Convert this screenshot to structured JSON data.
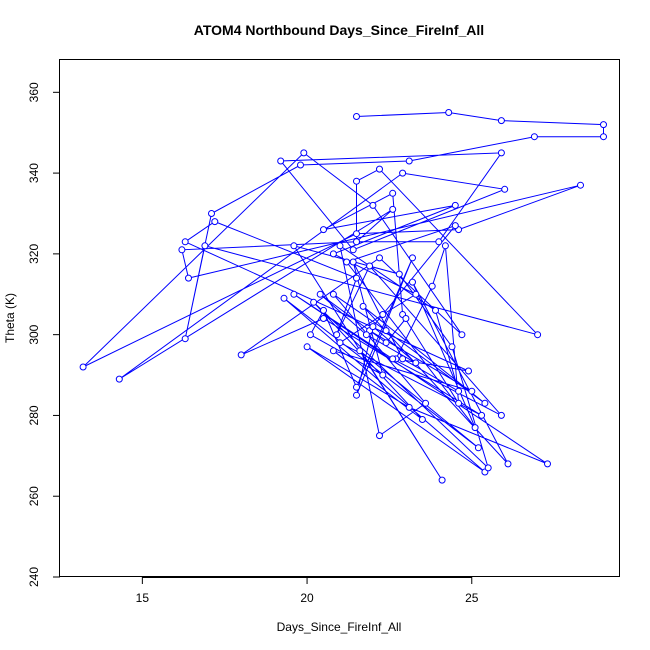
{
  "chart_data": {
    "type": "line",
    "title": "ATOM4 Northbound Days_Since_FireInf_All",
    "xlabel": "Days_Since_FireInf_All",
    "ylabel": "Theta (K)",
    "xlim": [
      12.5,
      29.5
    ],
    "ylim": [
      240,
      368
    ],
    "xticks": [
      15,
      20,
      25
    ],
    "yticks": [
      240,
      260,
      280,
      300,
      320,
      340,
      360
    ],
    "grid": false,
    "line_color": "#0000ff",
    "marker": "open-circle",
    "series": [
      {
        "x": [
          21.5,
          24.3,
          25.9,
          29.0,
          29.0,
          26.9,
          23.1,
          19.8,
          17.1,
          16.3,
          16.9,
          27.0,
          22.2,
          21.5,
          21.5,
          22.6,
          14.3,
          22.9,
          26.0,
          21.4,
          19.2,
          25.9,
          24.0,
          21.5,
          16.2,
          16.4,
          28.3,
          24.6,
          21.5,
          13.2,
          19.9,
          22.0,
          24.7,
          22.2,
          18.0,
          20.5,
          25.3,
          21.0,
          22.3,
          23.3,
          20.8,
          24.5,
          20.5,
          22.6,
          22.9,
          24.6,
          24.2,
          23.8,
          22.7,
          24.9,
          16.3,
          17.2,
          21.5,
          20.9,
          21.9,
          25.9,
          22.6,
          19.6,
          27.3,
          23.1,
          20.0,
          25.4,
          19.3,
          25.2,
          21.6,
          24.1,
          19.6,
          22.8,
          24.4,
          25.5,
          20.2,
          23.5,
          20.8,
          25.0,
          21.9,
          24.5,
          21.2,
          25.1,
          23.2,
          26.1,
          21.7,
          25.4,
          22.4,
          20.8,
          23.6,
          22.2,
          21.0,
          23.9,
          24.6,
          22.9,
          21.4,
          22.3,
          20.1,
          20.5,
          21.5,
          23.2,
          21.5,
          22.0,
          23.3,
          21.8,
          20.4,
          22.4,
          23.0
        ],
        "y": [
          354,
          355,
          353,
          352,
          349,
          349,
          343,
          342,
          330,
          299,
          322,
          300,
          341,
          338,
          323,
          331,
          289,
          340,
          336,
          321,
          343,
          345,
          323,
          323,
          321,
          314,
          337,
          326,
          325,
          292,
          345,
          332,
          300,
          319,
          295,
          304,
          280,
          298,
          305,
          310,
          320,
          332,
          326,
          335,
          305,
          283,
          322,
          312,
          294,
          291,
          323,
          328,
          314,
          300,
          317,
          280,
          294,
          310,
          268,
          282,
          297,
          266,
          309,
          272,
          296,
          264,
          322,
          315,
          297,
          267,
          308,
          279,
          296,
          286,
          301,
          327,
          318,
          277,
          313,
          268,
          307,
          283,
          301,
          310,
          283,
          275,
          322,
          306,
          286,
          294,
          318,
          290,
          300,
          306,
          287,
          319,
          285,
          302,
          293,
          300,
          310,
          298,
          304
        ]
      }
    ]
  }
}
